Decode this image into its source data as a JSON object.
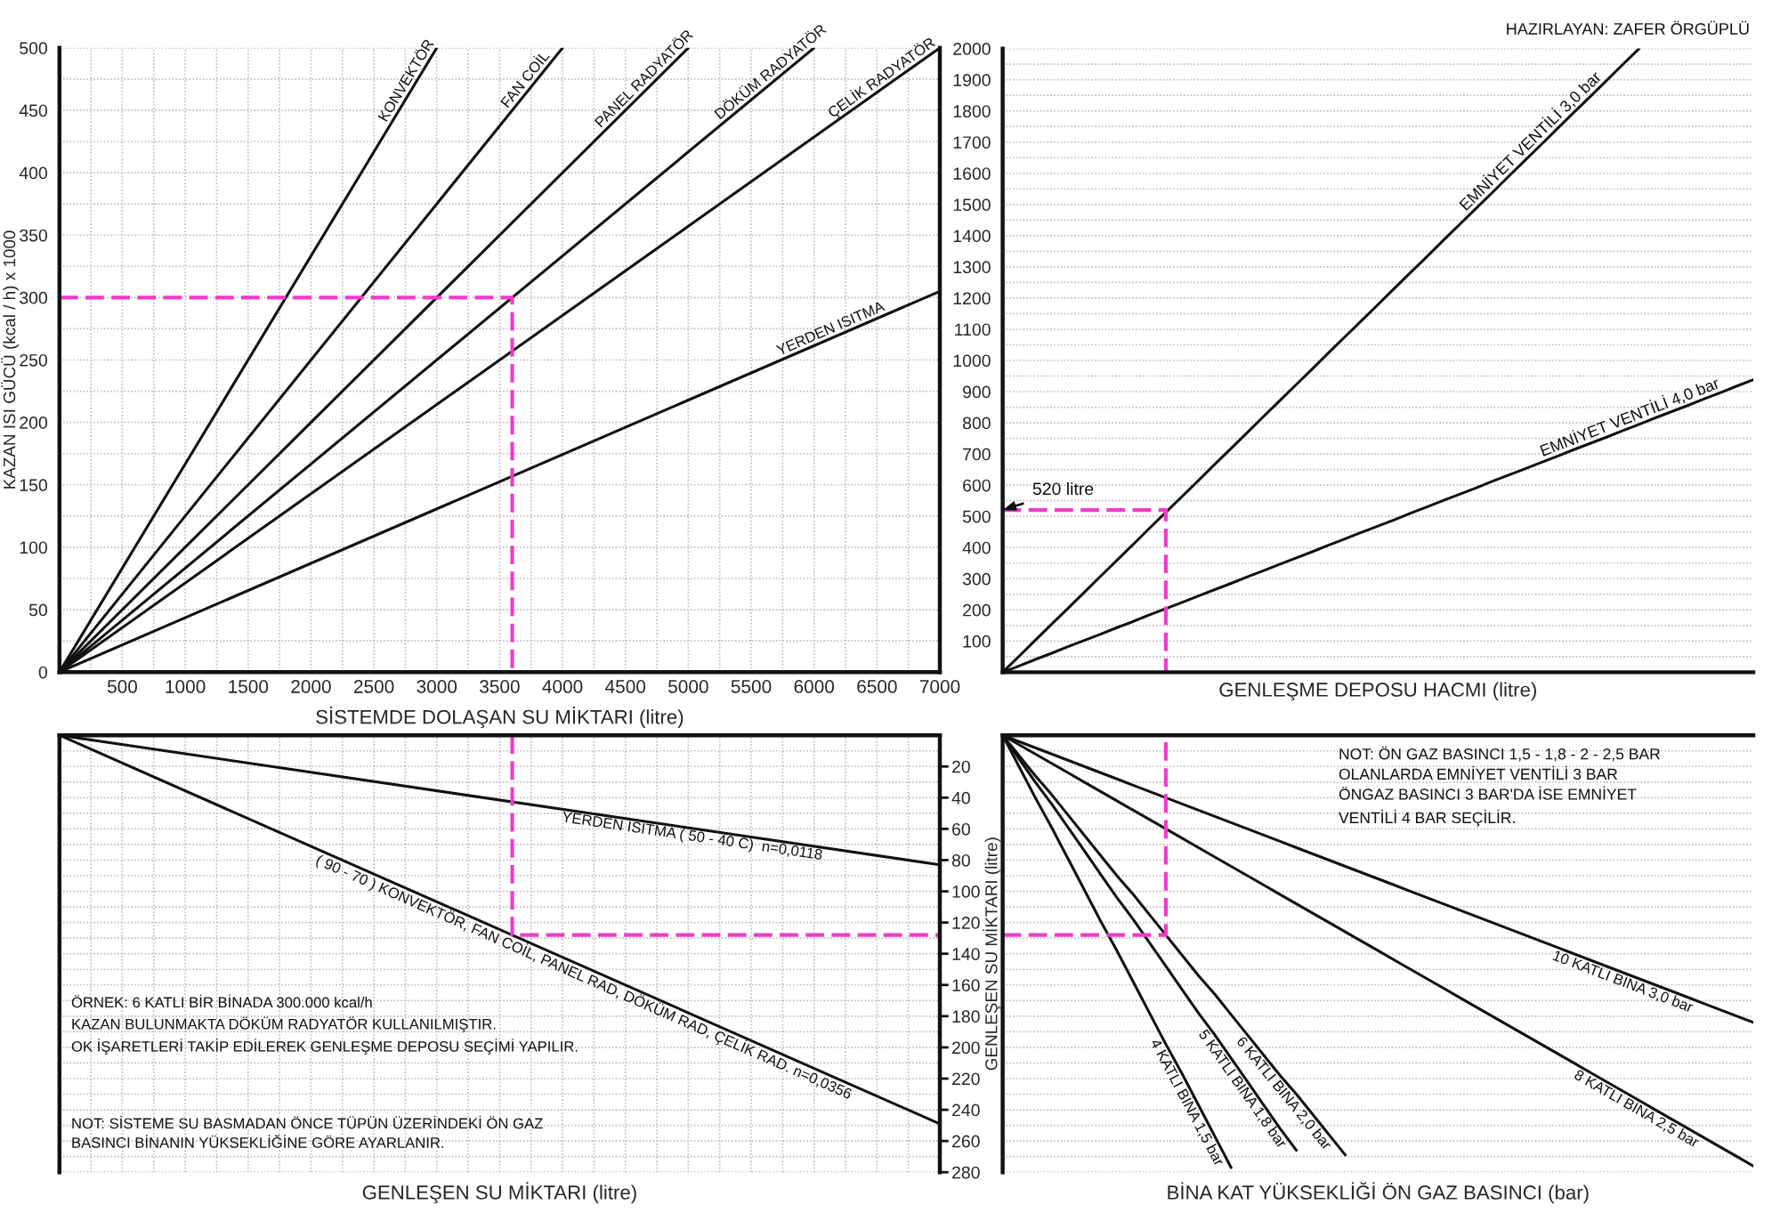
{
  "chart_data": [
    {
      "type": "line",
      "xlabel": "SİSTEMDE DOLAŞAN SU MİKTARI (litre)",
      "ylabel": "KAZAN ISI GÜCÜ (kcal / h) x 1000",
      "xlim": [
        0,
        7000
      ],
      "xticks": [
        500,
        1000,
        1500,
        2000,
        2500,
        3000,
        3500,
        4000,
        4500,
        5000,
        5500,
        6000,
        6500,
        7000
      ],
      "ylim": [
        0,
        500
      ],
      "yticks": [
        0,
        50,
        100,
        150,
        200,
        250,
        300,
        350,
        400,
        450,
        500
      ],
      "grid": true,
      "series": [
        {
          "name": "KONVEKTÖR",
          "color": "#111111",
          "x": [
            0,
            3000
          ],
          "values": [
            0,
            500
          ]
        },
        {
          "name": "FAN COİL",
          "color": "#111111",
          "x": [
            0,
            4000
          ],
          "values": [
            0,
            500
          ]
        },
        {
          "name": "PANEL RADYATÖR",
          "color": "#111111",
          "x": [
            0,
            5000
          ],
          "values": [
            0,
            500
          ]
        },
        {
          "name": "DÖKÜM RADYATÖR",
          "color": "#111111",
          "x": [
            0,
            6000
          ],
          "values": [
            0,
            500
          ]
        },
        {
          "name": "ÇELİK RADYATÖR",
          "color": "#111111",
          "x": [
            0,
            7000
          ],
          "values": [
            0,
            500
          ]
        },
        {
          "name": "YERDEN ISITMA",
          "color": "#111111",
          "x": [
            0,
            7000
          ],
          "values": [
            0,
            305
          ]
        },
        {
          "color": "#f03cc8",
          "line_style": "dashed",
          "x": [
            0,
            3600,
            3600
          ],
          "values": [
            300,
            300,
            0
          ]
        }
      ]
    },
    {
      "type": "line",
      "xlabel": "GENLEŞME DEPOSU HACMI (litre)",
      "categories": [
        null,
        null,
        null,
        null,
        null,
        null,
        null,
        null,
        null,
        null,
        null,
        null,
        null,
        null,
        null,
        null,
        null,
        null,
        null,
        null,
        null,
        null,
        null,
        null,
        null,
        null,
        null,
        null,
        null,
        null,
        null,
        null,
        null,
        null,
        null,
        null,
        null,
        null,
        null,
        null,
        null,
        null,
        null,
        null,
        null,
        null,
        null
      ],
      "ylim": [
        0,
        2000
      ],
      "yticks": [
        100,
        200,
        300,
        400,
        500,
        600,
        700,
        800,
        900,
        1000,
        1100,
        1200,
        1300,
        1400,
        1500,
        1600,
        1700,
        1800,
        1900,
        2000
      ],
      "tick_labels": "y",
      "grid": true,
      "annotations": [
        "HAZIRLAYAN: ZAFER ÖRGÜPLÜ",
        {
          "text": "520 litre",
          "y": 520
        }
      ],
      "series": [
        {
          "name": "EMNİYET VENTİLİ 3,0 bar",
          "color": "#111111",
          "values": [
            0,
            51,
            103,
            154,
            205,
            256,
            308,
            359,
            410,
            462,
            513,
            564,
            615,
            667,
            718,
            769,
            821,
            872,
            923,
            974,
            1026,
            1077,
            1128,
            1179,
            1231,
            1282,
            1333,
            1385,
            1436,
            1487,
            1538,
            1590,
            1641,
            1692,
            1744,
            1795,
            1846,
            1897,
            1949,
            2000,
            null,
            null,
            null,
            null,
            null,
            null,
            null
          ]
        },
        {
          "name": "EMNİYET VENTİLİ 4,0 bar",
          "color": "#111111",
          "values": [
            0,
            20,
            41,
            61,
            82,
            102,
            122,
            143,
            163,
            184,
            204,
            224,
            245,
            265,
            285,
            306,
            326,
            347,
            367,
            387,
            408,
            428,
            449,
            469,
            489,
            510,
            530,
            551,
            571,
            591,
            612,
            632,
            652,
            673,
            693,
            714,
            734,
            754,
            775,
            795,
            816,
            836,
            856,
            877,
            897,
            918,
            938
          ]
        },
        {
          "type": "step",
          "color": "#f03cc8",
          "line_style": "dashed",
          "values": [
            520,
            520,
            520,
            520,
            520,
            520,
            520,
            520,
            520,
            520,
            0,
            null,
            null,
            null,
            null,
            null,
            null,
            null,
            null,
            null,
            null,
            null,
            null,
            null,
            null,
            null,
            null,
            null,
            null,
            null,
            null,
            null,
            null,
            null,
            null,
            null,
            null,
            null,
            null,
            null,
            null,
            null,
            null,
            null,
            null,
            null,
            null
          ]
        }
      ]
    },
    {
      "type": "line",
      "xlabel": "GENLEŞEN SU MİKTARI (litre)",
      "ylabel": "GENLEŞEN SU MİKTARI (litre)",
      "xlim": [
        0,
        7000
      ],
      "xticks": [
        500,
        1000,
        1500,
        2000,
        2500,
        3000,
        3500,
        4000,
        4500,
        5000,
        5500,
        6000,
        6500,
        7000
      ],
      "ylim": [
        280,
        0
      ],
      "yticks": [
        20,
        40,
        60,
        80,
        100,
        120,
        140,
        160,
        180,
        200,
        220,
        240,
        260,
        280
      ],
      "tick_labels": "y",
      "grid": true,
      "annotations": [
        "ÖRNEK: 6 KATLI BİR BİNADA 300.000 kcal/h\nKAZAN BULUNMAKTA DÖKÜM RADYATÖR KULLANILMIŞTIR.\nOK İŞARETLERİ TAKİP EDİLEREK GENLEŞME DEPOSU SEÇİMİ YAPILIR.",
        "NOT: SİSTEME SU BASMADAN ÖNCE TÜPÜN ÜZERİNDEKİ ÖN GAZ\nBASINCI BİNANIN YÜKSEKLİĞİNE GÖRE AYARLANIR."
      ],
      "series": [
        {
          "name": "YERDEN ISITMA ( 50 - 40 C)  n=0,0118",
          "color": "#111111",
          "x": [
            0,
            7000
          ],
          "values": [
            0,
            83
          ]
        },
        {
          "name": "( 90 - 70 ) KONVEKTÖR, FAN COİL, PANEL RAD, DÖKÜM RAD, ÇELİK RAD. n=0,0356",
          "color": "#111111",
          "x": [
            0,
            7000
          ],
          "values": [
            0,
            249
          ]
        },
        {
          "color": "#f03cc8",
          "line_style": "dashed",
          "x": [
            3600,
            3600,
            7000
          ],
          "values": [
            0,
            128,
            128
          ]
        }
      ]
    },
    {
      "type": "line",
      "xlabel": "BİNA KAT YÜKSEKLİĞİ ÖN GAZ BASINCI (bar)",
      "categories": [
        null,
        null,
        null,
        null,
        null,
        null,
        null,
        null,
        null,
        null,
        null,
        null,
        null,
        null,
        null,
        null,
        null,
        null,
        null,
        null,
        null,
        null,
        null,
        null,
        null,
        null,
        null,
        null,
        null,
        null,
        null,
        null,
        null,
        null,
        null,
        null,
        null,
        null,
        null,
        null,
        null,
        null,
        null,
        null,
        null,
        null,
        null
      ],
      "ylim": [
        280,
        0
      ],
      "yticks": [
        20,
        40,
        60,
        80,
        100,
        120,
        140,
        160,
        180,
        200,
        220,
        240,
        260,
        280
      ],
      "tick_labels": false,
      "grid": true,
      "annotations": [
        "NOT: ÖN GAZ BASINCI 1,5 - 1,8 - 2 - 2,5 BAR\nOLANLARDA EMNİYET VENTİLİ 3 BAR\nÖNGAZ BASINCI 3 BAR'DA İSE EMNİYET\nVENTİLİ 4 BAR SEÇİLİR."
      ],
      "series": [
        {
          "name": "10 KATLI BİNA 3,0 bar",
          "color": "#111111",
          "values": [
            0,
            4,
            8,
            12,
            16,
            20,
            24,
            28,
            32,
            36,
            40,
            44,
            48,
            52,
            56,
            60,
            64,
            68,
            72,
            76,
            80,
            84,
            88,
            92,
            96,
            100,
            104,
            108,
            112,
            116,
            120,
            124,
            128,
            132,
            136,
            140,
            144,
            148,
            152,
            156,
            160,
            164,
            168,
            172,
            176,
            180,
            184
          ]
        },
        {
          "name": "8 KATLI BİNA 2,5 bar",
          "color": "#111111",
          "values": [
            0,
            6,
            12,
            18,
            24,
            30,
            36,
            42,
            48,
            54,
            60,
            66,
            72,
            78,
            84,
            90,
            96,
            102,
            108,
            114,
            120,
            126,
            132,
            138,
            144,
            150,
            156,
            162,
            168,
            174,
            180,
            186,
            192,
            198,
            204,
            210,
            216,
            222,
            228,
            234,
            240,
            246,
            252,
            258,
            264,
            270,
            276
          ]
        },
        {
          "name": "6 KATLI BİNA 2,0 bar",
          "color": "#111111",
          "values": [
            0,
            13,
            26,
            38,
            51,
            64,
            77,
            90,
            102,
            115,
            128,
            141,
            154,
            166,
            179,
            192,
            205,
            218,
            230,
            243,
            256,
            269,
            null,
            null,
            null,
            null,
            null,
            null,
            null,
            null,
            null,
            null,
            null,
            null,
            null,
            null,
            null,
            null,
            null,
            null,
            null,
            null,
            null,
            null,
            null,
            null,
            null
          ]
        },
        {
          "name": "5 KATLI BİNA 1,8 bar",
          "color": "#111111",
          "values": [
            0,
            15,
            30,
            44,
            59,
            74,
            89,
            104,
            118,
            133,
            148,
            163,
            178,
            192,
            207,
            222,
            237,
            252,
            266,
            null,
            null,
            null,
            null,
            null,
            null,
            null,
            null,
            null,
            null,
            null,
            null,
            null,
            null,
            null,
            null,
            null,
            null,
            null,
            null,
            null,
            null,
            null,
            null,
            null,
            null,
            null,
            null
          ]
        },
        {
          "name": "4 KATLI BİNA 1,5 bar",
          "color": "#111111",
          "values": [
            0,
            20,
            40,
            59,
            79,
            99,
            119,
            138,
            158,
            178,
            198,
            217,
            237,
            257,
            277,
            null,
            null,
            null,
            null,
            null,
            null,
            null,
            null,
            null,
            null,
            null,
            null,
            null,
            null,
            null,
            null,
            null,
            null,
            null,
            null,
            null,
            null,
            null,
            null,
            null,
            null,
            null,
            null,
            null,
            null,
            null,
            null
          ]
        },
        {
          "type": "step",
          "color": "#f03cc8",
          "line_style": "dashed",
          "values": [
            128,
            128,
            128,
            128,
            128,
            128,
            128,
            128,
            128,
            128,
            0,
            null,
            null,
            null,
            null,
            null,
            null,
            null,
            null,
            null,
            null,
            null,
            null,
            null,
            null,
            null,
            null,
            null,
            null,
            null,
            null,
            null,
            null,
            null,
            null,
            null,
            null,
            null,
            null,
            null,
            null,
            null,
            null,
            null,
            null,
            null,
            null
          ]
        }
      ]
    }
  ]
}
